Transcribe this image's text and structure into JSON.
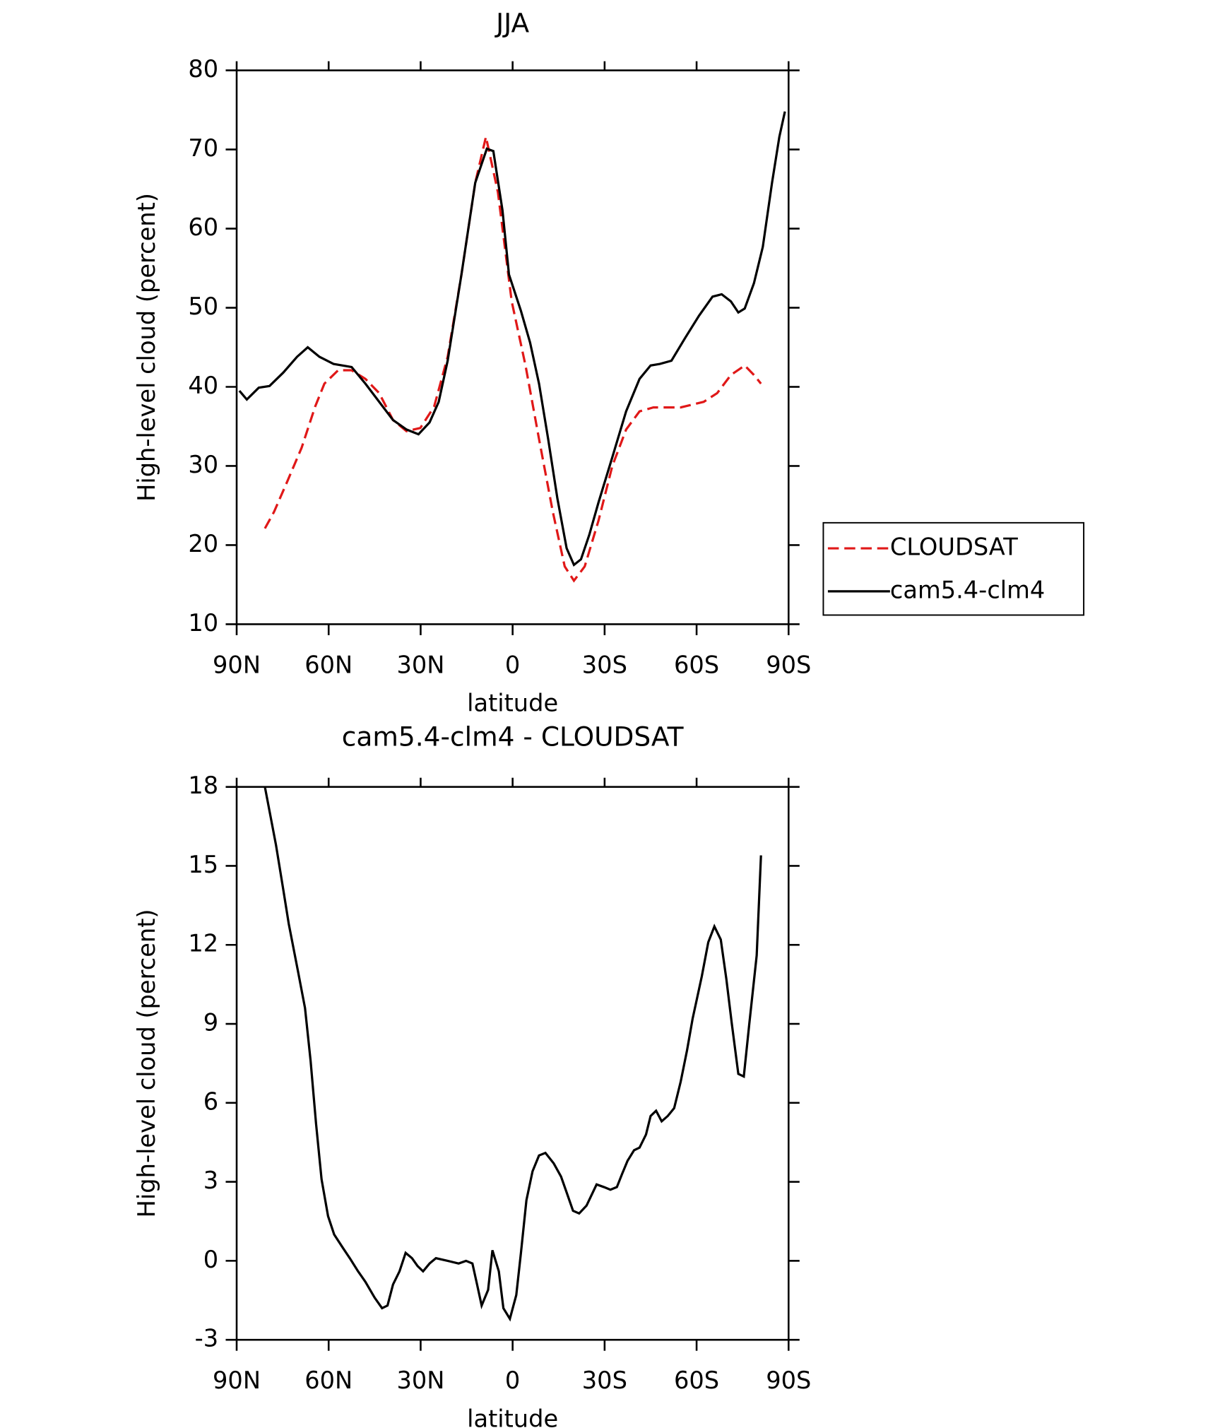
{
  "chart_data": [
    {
      "type": "line",
      "title": "JJA",
      "xlabel": "latitude",
      "ylabel": "High-level cloud (percent)",
      "xlim": [
        90,
        -90
      ],
      "xticks": [
        {
          "value": 90,
          "label": "90N"
        },
        {
          "value": 60,
          "label": "60N"
        },
        {
          "value": 30,
          "label": "30N"
        },
        0,
        {
          "value": -30,
          "label": "30S"
        },
        {
          "value": -60,
          "label": "60S"
        },
        {
          "value": -90,
          "label": "90S"
        }
      ],
      "ylim": [
        10,
        80
      ],
      "yticks": [
        10,
        20,
        30,
        40,
        50,
        60,
        70,
        80
      ],
      "legend": "right",
      "series": [
        {
          "name": "CLOUDSAT",
          "color": "#e01818",
          "dash": true,
          "x": [
            80.8,
            77.8,
            73.3,
            68.8,
            64.4,
            61.4,
            56.9,
            52.5,
            48,
            43.5,
            39,
            34.6,
            30.1,
            25.6,
            21.2,
            16.7,
            12.2,
            8.7,
            4.8,
            0.3,
            -4.2,
            -8.6,
            -13.1,
            -17,
            -20,
            -23.5,
            -28,
            -32.5,
            -37,
            -41.4,
            -45.9,
            -54.8,
            -62.3,
            -66.7,
            -71.2,
            -75.7,
            -78.7,
            -81
          ],
          "values": [
            22.1,
            24.2,
            28.2,
            32.3,
            37.5,
            40.4,
            42.1,
            42.1,
            41,
            39.2,
            35.8,
            34.4,
            34.8,
            37.5,
            43.8,
            54.2,
            65.8,
            71.6,
            64.6,
            50.8,
            42.7,
            33.4,
            24.2,
            17.3,
            15.5,
            17.3,
            23.1,
            30,
            34.6,
            36.9,
            37.4,
            37.4,
            38.1,
            39.2,
            41.5,
            42.7,
            41.5,
            40.4
          ]
        },
        {
          "name": "cam5.4-clm4",
          "color": "#000000",
          "dash": false,
          "x": [
            89.1,
            86.7,
            82.8,
            79.3,
            74.8,
            70.3,
            66.8,
            63,
            58.4,
            52.5,
            48,
            43.5,
            39,
            34.6,
            30.7,
            27.1,
            24.1,
            21.2,
            16.7,
            12.2,
            8.4,
            6.3,
            3.3,
            1.2,
            -2.7,
            -5.7,
            -8.6,
            -11.6,
            -14.6,
            -17.6,
            -20,
            -22.3,
            -25,
            -28,
            -32.5,
            -37,
            -41.4,
            -45,
            -48,
            -51.8,
            -56.3,
            -60.8,
            -65.2,
            -68.2,
            -71.2,
            -73.6,
            -75.7,
            -78.7,
            -81.6,
            -84.6,
            -87,
            -88.8
          ],
          "values": [
            39.5,
            38.4,
            39.9,
            40.1,
            41.8,
            43.8,
            45,
            43.8,
            42.9,
            42.5,
            40.4,
            38.1,
            35.8,
            34.6,
            34,
            35.5,
            38.1,
            43.3,
            54.2,
            65.8,
            70.1,
            69.8,
            62.3,
            54.2,
            49.6,
            45.6,
            40.4,
            33.4,
            25.9,
            19.6,
            17.5,
            18.2,
            21.3,
            25.4,
            31.1,
            36.9,
            41,
            42.7,
            42.9,
            43.3,
            46.2,
            49,
            51.4,
            51.7,
            50.8,
            49.4,
            49.9,
            53.1,
            57.7,
            65.8,
            71.6,
            74.8
          ]
        }
      ]
    },
    {
      "type": "line",
      "title": "cam5.4-clm4 - CLOUDSAT",
      "xlabel": "latitude",
      "ylabel": "High-level cloud (percent)",
      "xlim": [
        90,
        -90
      ],
      "xticks": [
        {
          "value": 90,
          "label": "90N"
        },
        {
          "value": 60,
          "label": "60N"
        },
        {
          "value": 30,
          "label": "30N"
        },
        0,
        {
          "value": -30,
          "label": "30S"
        },
        {
          "value": -60,
          "label": "60S"
        },
        {
          "value": -90,
          "label": "90S"
        }
      ],
      "ylim": [
        -3,
        18
      ],
      "yticks": [
        -3,
        0,
        3,
        6,
        9,
        12,
        15,
        18
      ],
      "series": [
        {
          "color": "#000000",
          "dash": false,
          "x": [
            80.8,
            77.2,
            74.8,
            73,
            70,
            67.7,
            65.9,
            64.1,
            62.3,
            60.2,
            58.2,
            55.4,
            53.1,
            50.4,
            48,
            45,
            42.6,
            40.8,
            39,
            36.9,
            34.9,
            32.8,
            31,
            29.2,
            27.1,
            25,
            21.2,
            17.6,
            15.2,
            13.1,
            11.6,
            10.1,
            8,
            6.6,
            4.5,
            3,
            0.9,
            -1.2,
            -2.7,
            -4.5,
            -6.5,
            -8.6,
            -10.7,
            -13.4,
            -15.8,
            -17.6,
            -19.7,
            -21.7,
            -24.1,
            -27.4,
            -29.8,
            -31.9,
            -34,
            -35.7,
            -37.5,
            -39.6,
            -41.4,
            -43.5,
            -45,
            -46.8,
            -48.6,
            -50.6,
            -52.7,
            -54.8,
            -56.9,
            -58.7,
            -60.2,
            -61.7,
            -63.8,
            -65.8,
            -67.9,
            -69.7,
            -71.5,
            -73.6,
            -75.4,
            -77.2,
            -79.6,
            -81
          ],
          "values": [
            18,
            15.8,
            14.1,
            12.8,
            11,
            9.6,
            7.6,
            5.2,
            3.1,
            1.7,
            1,
            0.5,
            0.1,
            -0.4,
            -0.8,
            -1.4,
            -1.8,
            -1.7,
            -0.9,
            -0.4,
            0.3,
            0.1,
            -0.2,
            -0.4,
            -0.1,
            0.1,
            0,
            -0.1,
            0,
            -0.1,
            -0.9,
            -1.7,
            -1.1,
            0.4,
            -0.4,
            -1.8,
            -2.2,
            -1.3,
            0.3,
            2.3,
            3.4,
            4,
            4.1,
            3.7,
            3.2,
            2.6,
            1.9,
            1.8,
            2.1,
            2.9,
            2.8,
            2.7,
            2.8,
            3.3,
            3.8,
            4.2,
            4.3,
            4.8,
            5.5,
            5.7,
            5.3,
            5.5,
            5.8,
            6.8,
            8,
            9.2,
            10,
            10.8,
            12.1,
            12.7,
            12.2,
            10.7,
            9,
            7.1,
            7,
            9,
            11.6,
            15.4
          ]
        }
      ]
    }
  ]
}
